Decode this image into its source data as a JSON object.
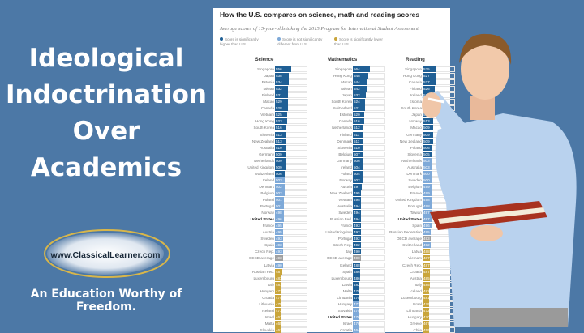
{
  "headline": [
    "Ideological",
    "Indoctrination",
    "Over",
    "Academics"
  ],
  "logo_text": "www.ClassicalLearner.com",
  "tagline": "An Education Worthy of Freedom.",
  "chart": {
    "title": "How the U.S. compares on science, math and reading scores",
    "subtitle": "Average scores of 15-year-olds taking the 2015 Program for International Student Assessment",
    "legend": [
      {
        "text": "Score is significantly higher than U.S.",
        "color": "#1f5f95"
      },
      {
        "text": "Score is not significantly different from U.S.",
        "color": "#7ea9d8"
      },
      {
        "text": "Score is significantly lower than U.S.",
        "color": "#c9a53b"
      }
    ],
    "colors": {
      "higher": "#1f5f95",
      "same": "#7ea9d8",
      "lower": "#c9a53b",
      "avg": "#a0a0a0"
    }
  },
  "chart_data": [
    {
      "type": "table",
      "title": "Science",
      "rows": [
        [
          "Singapore",
          556,
          "h"
        ],
        [
          "Japan",
          538,
          "h"
        ],
        [
          "Estonia",
          534,
          "h"
        ],
        [
          "Taiwan",
          532,
          "h"
        ],
        [
          "Finland",
          531,
          "h"
        ],
        [
          "Macao",
          529,
          "h"
        ],
        [
          "Canada",
          528,
          "h"
        ],
        [
          "Vietnam",
          525,
          "h"
        ],
        [
          "Hong Kong",
          523,
          "h"
        ],
        [
          "South Korea",
          516,
          "h"
        ],
        [
          "Slovenia",
          513,
          "h"
        ],
        [
          "New Zealand",
          513,
          "h"
        ],
        [
          "Australia",
          510,
          "h"
        ],
        [
          "Germany",
          509,
          "h"
        ],
        [
          "Netherlands",
          509,
          "h"
        ],
        [
          "United Kingdom",
          509,
          "h"
        ],
        [
          "Switzerland",
          506,
          "h"
        ],
        [
          "Ireland",
          503,
          "s"
        ],
        [
          "Denmark",
          502,
          "s"
        ],
        [
          "Belgium",
          502,
          "s"
        ],
        [
          "Poland",
          501,
          "s"
        ],
        [
          "Portugal",
          501,
          "s"
        ],
        [
          "Norway",
          498,
          "s"
        ],
        [
          "United States",
          496,
          "s"
        ],
        [
          "France",
          495,
          "s"
        ],
        [
          "Austria",
          495,
          "s"
        ],
        [
          "Sweden",
          493,
          "s"
        ],
        [
          "Spain",
          493,
          "s"
        ],
        [
          "Czech Rep.",
          493,
          "s"
        ],
        [
          "OECD average",
          493,
          "a"
        ],
        [
          "Latvia",
          490,
          "s"
        ],
        [
          "Russian Fed.",
          487,
          "l"
        ],
        [
          "Luxembourg",
          483,
          "l"
        ],
        [
          "Italy",
          481,
          "l"
        ],
        [
          "Hungary",
          477,
          "l"
        ],
        [
          "Croatia",
          475,
          "l"
        ],
        [
          "Lithuania",
          475,
          "l"
        ],
        [
          "Iceland",
          473,
          "l"
        ],
        [
          "Israel",
          467,
          "l"
        ],
        [
          "Malta",
          465,
          "l"
        ],
        [
          "Slovakia",
          461,
          "l"
        ]
      ]
    },
    {
      "type": "table",
      "title": "Mathematics",
      "rows": [
        [
          "Singapore",
          564,
          "h"
        ],
        [
          "Hong Kong",
          548,
          "h"
        ],
        [
          "Macao",
          544,
          "h"
        ],
        [
          "Taiwan",
          542,
          "h"
        ],
        [
          "Japan",
          532,
          "h"
        ],
        [
          "South Korea",
          524,
          "h"
        ],
        [
          "Switzerland",
          521,
          "h"
        ],
        [
          "Estonia",
          520,
          "h"
        ],
        [
          "Canada",
          516,
          "h"
        ],
        [
          "Netherlands",
          512,
          "h"
        ],
        [
          "Finland",
          511,
          "h"
        ],
        [
          "Denmark",
          511,
          "h"
        ],
        [
          "Slovenia",
          510,
          "h"
        ],
        [
          "Belgium",
          507,
          "h"
        ],
        [
          "Germany",
          506,
          "h"
        ],
        [
          "Ireland",
          504,
          "h"
        ],
        [
          "Poland",
          504,
          "h"
        ],
        [
          "Norway",
          502,
          "h"
        ],
        [
          "Austria",
          497,
          "h"
        ],
        [
          "New Zealand",
          495,
          "h"
        ],
        [
          "Vietnam",
          495,
          "h"
        ],
        [
          "Australia",
          494,
          "h"
        ],
        [
          "Sweden",
          494,
          "h"
        ],
        [
          "Russian Fed.",
          494,
          "h"
        ],
        [
          "France",
          493,
          "h"
        ],
        [
          "United Kingdom",
          492,
          "h"
        ],
        [
          "Portugal",
          492,
          "h"
        ],
        [
          "Czech Rep.",
          492,
          "h"
        ],
        [
          "Italy",
          490,
          "h"
        ],
        [
          "OECD average",
          490,
          "a"
        ],
        [
          "Iceland",
          488,
          "h"
        ],
        [
          "Spain",
          486,
          "h"
        ],
        [
          "Luxembourg",
          486,
          "h"
        ],
        [
          "Latvia",
          482,
          "h"
        ],
        [
          "Malta",
          479,
          "h"
        ],
        [
          "Lithuania",
          478,
          "h"
        ],
        [
          "Hungary",
          477,
          "s"
        ],
        [
          "Slovakia",
          475,
          "s"
        ],
        [
          "United States",
          470,
          "s"
        ],
        [
          "Israel",
          470,
          "s"
        ],
        [
          "Croatia",
          464,
          "s"
        ]
      ]
    },
    {
      "type": "table",
      "title": "Reading",
      "rows": [
        [
          "Singapore",
          535,
          "h"
        ],
        [
          "Hong Kong",
          527,
          "h"
        ],
        [
          "Canada",
          527,
          "h"
        ],
        [
          "Finland",
          526,
          "h"
        ],
        [
          "Ireland",
          521,
          "h"
        ],
        [
          "Estonia",
          519,
          "h"
        ],
        [
          "South Korea",
          517,
          "h"
        ],
        [
          "Japan",
          516,
          "h"
        ],
        [
          "Norway",
          513,
          "h"
        ],
        [
          "Macao",
          509,
          "h"
        ],
        [
          "Germany",
          509,
          "h"
        ],
        [
          "New Zealand",
          509,
          "h"
        ],
        [
          "Poland",
          506,
          "h"
        ],
        [
          "Slovenia",
          505,
          "h"
        ],
        [
          "Netherlands",
          503,
          "s"
        ],
        [
          "Australia",
          503,
          "s"
        ],
        [
          "Denmark",
          500,
          "s"
        ],
        [
          "Sweden",
          500,
          "s"
        ],
        [
          "Belgium",
          499,
          "s"
        ],
        [
          "France",
          499,
          "s"
        ],
        [
          "United Kingdom",
          498,
          "s"
        ],
        [
          "Portugal",
          498,
          "s"
        ],
        [
          "Taiwan",
          497,
          "s"
        ],
        [
          "United States",
          497,
          "s"
        ],
        [
          "Spain",
          496,
          "s"
        ],
        [
          "Russian Federation",
          495,
          "s"
        ],
        [
          "OECD average",
          493,
          "a"
        ],
        [
          "Switzerland",
          492,
          "s"
        ],
        [
          "Latvia",
          488,
          "l"
        ],
        [
          "Vietnam",
          487,
          "l"
        ],
        [
          "Czech Rep.",
          487,
          "l"
        ],
        [
          "Croatia",
          487,
          "l"
        ],
        [
          "Austria",
          485,
          "l"
        ],
        [
          "Italy",
          485,
          "l"
        ],
        [
          "Iceland",
          482,
          "l"
        ],
        [
          "Luxembourg",
          481,
          "l"
        ],
        [
          "Israel",
          479,
          "l"
        ],
        [
          "Lithuania",
          472,
          "l"
        ],
        [
          "Hungary",
          470,
          "l"
        ],
        [
          "Greece",
          467,
          "l"
        ],
        [
          "Chile",
          459,
          "l"
        ]
      ]
    }
  ]
}
